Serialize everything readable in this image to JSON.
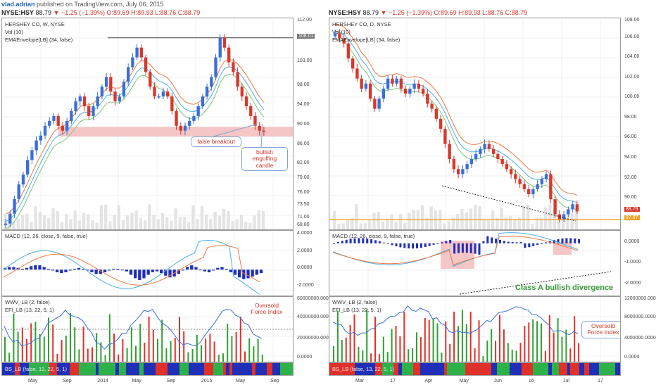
{
  "header": {
    "author": "vlad.adrian",
    "published": "published on TradingView.com, July 06, 2015"
  },
  "left": {
    "symbol_line": {
      "ticker": "NYSE:HSY",
      "last": "88.79",
      "change": "▼ −1.25 (−1.39%)",
      "open": "O:89.69",
      "high": "H:89.93",
      "low": "L:88.76",
      "close": "C:88.79"
    },
    "title": "HERSHEY CO, W, NYSE",
    "vol_label": "Vol (10)",
    "ema_label": "EMAEnvelope[LB] (34, false)",
    "macd_label": "MACD (12, 26, close, 9, false, true)",
    "wwv_label": "WWV_LB (2, false)",
    "efi_label": "EFI_LB (13, 22, 5, 1)",
    "bs_label": "BS_LB (false, 13, 22, 5, 1)",
    "callout_false_breakout": "false breakout",
    "callout_bullish": "bullish engulfing candle",
    "callout_oversold": "Oversold Force Index",
    "price_tag": "88.79",
    "gray_tag": "108.01"
  },
  "right": {
    "symbol_line": {
      "ticker": "NYSE:HSY",
      "last": "88.79",
      "change": "▼ −1.25 (−1.39%)",
      "open": "O:89.69",
      "high": "H:89.93",
      "low": "L:88.76",
      "close": "C:88.79"
    },
    "title": "HERSHEY CO, D, NYSE",
    "vol_label": "Vol (10)",
    "ema_label": "EMAEnvelope[LB] (34, false)",
    "macd_label": "MACD (12, 26, close, 9, false, true)",
    "wwv_label": "WWV_LB (2, false)",
    "efi_label": "EFI_LB (13, 22, 5, 1)",
    "bs_label": "BS_LB (false, 13, 22, 5, 1)",
    "divergence_text": "Class A bullish divergence",
    "callout_oversold": "Oversold Force Index",
    "price_tag": "88.79",
    "orange_tag": "87.97"
  },
  "chart_data": [
    {
      "type": "line",
      "title": "HERSHEY CO, W, NYSE",
      "panel": "left-price",
      "ylim": [
        68.8,
        112.0
      ],
      "y_ticks": [
        "112.00",
        "108.01",
        "103.00",
        "98.00",
        "94.00",
        "90.00",
        "86.00",
        "82.00",
        "79.00",
        "76.00",
        "73.50",
        "71.00",
        "68.80"
      ],
      "x_ticks": [
        "May",
        "Sep",
        "2014",
        "May",
        "Sep",
        "2015",
        "May",
        "Sep"
      ],
      "series": [
        {
          "name": "",
          "values": [
            70,
            72,
            75,
            78,
            80,
            83,
            85,
            87,
            88,
            90,
            91,
            92,
            90,
            89,
            91,
            93,
            95,
            96,
            94,
            92,
            94,
            96,
            98,
            100,
            97,
            95,
            96,
            99,
            102,
            104,
            106,
            104,
            101,
            98,
            96,
            96,
            97,
            96,
            93,
            90,
            89,
            90,
            91,
            92,
            94,
            96,
            98,
            100,
            104,
            108,
            106,
            103,
            101,
            98,
            96,
            94,
            92,
            90,
            89,
            88.79
          ]
        }
      ],
      "support_band": [
        87.8,
        89.8
      ],
      "resistance_line": 108.01
    },
    {
      "type": "bar",
      "panel": "left-macd",
      "ylim": [
        -3.0,
        4.5
      ],
      "y_ticks": [
        "4.0000",
        "2.0000",
        "0.0000",
        "-2.0000"
      ],
      "histogram": [
        0.2,
        0.3,
        0.3,
        0.2,
        0.1,
        0.2,
        0.4,
        0.5,
        0.5,
        0.3,
        0.1,
        -0.1,
        -0.3,
        -0.4,
        -0.3,
        -0.1,
        0.1,
        0.2,
        0.1,
        -0.1,
        -0.3,
        -0.5,
        -0.5,
        -0.3,
        -0.1,
        0.1,
        0.1,
        0.0,
        -0.2,
        -0.6,
        -1.0,
        -1.2,
        -1.0,
        -0.6,
        -0.3,
        -0.2,
        -0.4,
        -0.7,
        -0.9,
        -0.8,
        -0.5,
        -0.1,
        0.3,
        0.5,
        0.3,
        0.0,
        -0.2,
        -0.3,
        -0.1,
        0.2,
        0.3,
        0.1,
        -0.3,
        -0.6,
        -0.9,
        -1.1,
        -1.0,
        -0.8,
        -0.6,
        -0.4
      ]
    },
    {
      "type": "bar",
      "panel": "left-force",
      "ylim": [
        0,
        60000000
      ],
      "y_ticks": [
        "60000000.0000",
        "40000000.0000",
        "20000000.0000",
        "0.0000"
      ]
    },
    {
      "type": "line",
      "title": "HERSHEY CO, D, NYSE",
      "panel": "right-price",
      "ylim": [
        87.0,
        108.0
      ],
      "y_ticks": [
        "108.00",
        "106.00",
        "104.00",
        "102.00",
        "100.00",
        "98.00",
        "96.00",
        "94.00",
        "92.00",
        "90.00",
        "88.79",
        "87.97"
      ],
      "x_ticks": [
        "Mar",
        "17",
        "Apr",
        "May",
        "Jun",
        "16",
        "Jul",
        "17"
      ],
      "series": [
        {
          "name": "",
          "values": [
            106.5,
            106,
            105.5,
            104,
            103,
            102,
            101,
            101.5,
            100,
            99,
            100,
            101,
            102,
            101.5,
            102,
            101,
            100.5,
            101,
            101.5,
            101,
            100.5,
            99.5,
            99,
            98,
            97,
            95.5,
            94,
            93,
            92.5,
            93,
            93.5,
            94,
            94.5,
            95,
            95.5,
            95,
            94.5,
            94,
            93.5,
            93,
            92.5,
            92,
            91.5,
            91,
            90.5,
            91,
            91.5,
            92,
            92.5,
            90,
            88.5,
            88,
            88.5,
            89,
            89.5,
            88.79
          ]
        }
      ],
      "support_line": 87.97
    },
    {
      "type": "bar",
      "panel": "right-macd",
      "ylim": [
        -2.5,
        0.6
      ],
      "y_ticks": [
        "0.0000",
        "-1.0000",
        "-2.0000"
      ]
    },
    {
      "type": "bar",
      "panel": "right-force",
      "ylim": [
        0,
        12000000
      ],
      "y_ticks": [
        "12000000.0000",
        "8000000.0000",
        "4000000.0000",
        "0.0000"
      ]
    }
  ],
  "colors": {
    "up": "#3a6fd8",
    "down": "#d8382b",
    "ema_upper": "#f07840",
    "ema_mid": "#4ab0e8",
    "ema_lower": "#7cc67c",
    "macd_line": "#4ab0e8",
    "signal_line": "#f07840",
    "hist": "#1f2fb8",
    "force_green": "#2fa02f",
    "force_red": "#e0302a",
    "band": "#f6c6c6",
    "orange_line": "#f0a020"
  }
}
